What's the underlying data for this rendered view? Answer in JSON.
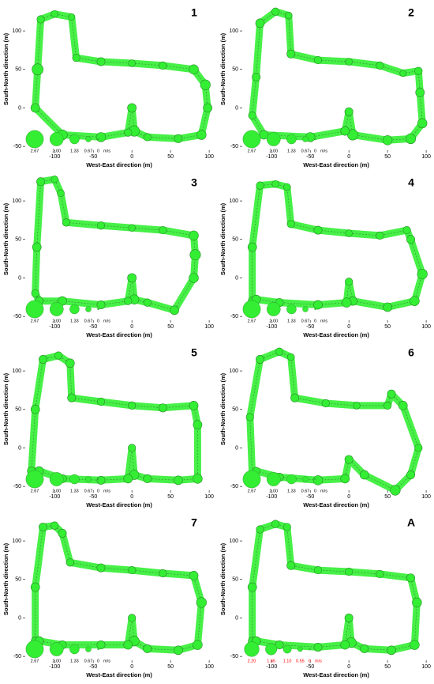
{
  "chart_data": [
    {
      "type": "bubble",
      "title": "1",
      "xlabel": "West-East direction (m)",
      "ylabel": "South-North direction (m)",
      "xlim": [
        -138,
        105
      ],
      "ylim": [
        -55,
        135
      ],
      "xticks": [
        -100,
        -50,
        0,
        50,
        100
      ],
      "yticks": [
        -50,
        0,
        50,
        100
      ],
      "color": "#33ee33",
      "x": [
        -125,
        -122,
        -118,
        -100,
        -78,
        -72,
        -40,
        0,
        40,
        80,
        95,
        98,
        90,
        60,
        20,
        3,
        0,
        -5,
        -40,
        -90
      ],
      "y": [
        0,
        50,
        115,
        122,
        118,
        65,
        60,
        58,
        55,
        50,
        30,
        0,
        -35,
        -40,
        -38,
        -30,
        0,
        -32,
        -38,
        -35
      ],
      "sizes": [
        1.2,
        1.6,
        1.0,
        0.9,
        0.8,
        1.0,
        1.1,
        0.9,
        1.0,
        1.3,
        1.4,
        1.2,
        1.3,
        1.1,
        1.0,
        1.5,
        1.2,
        1.0,
        1.3,
        1.4
      ],
      "size_legend": {
        "values": [
          2.67,
          {
            "value": 2,
            "label": "2.00"
          },
          1.33,
          0.67,
          0
        ],
        "unit": "m/s",
        "color": "#000000"
      }
    },
    {
      "type": "bubble",
      "title": "2",
      "xlabel": "West-East direction (m)",
      "ylabel": "South-North direction (m)",
      "xlim": [
        -138,
        105
      ],
      "ylim": [
        -55,
        135
      ],
      "xticks": [
        -100,
        -50,
        0,
        50,
        100
      ],
      "yticks": [
        -50,
        0,
        50,
        100
      ],
      "color": "#33ee33",
      "x": [
        -125,
        -120,
        -115,
        -95,
        -78,
        -75,
        -40,
        0,
        40,
        70,
        90,
        92,
        95,
        80,
        50,
        5,
        0,
        -5,
        -50,
        -110
      ],
      "y": [
        -10,
        40,
        110,
        125,
        120,
        70,
        62,
        60,
        55,
        45,
        48,
        20,
        -20,
        -40,
        -42,
        -35,
        -5,
        -30,
        -38,
        -35
      ],
      "sizes": [
        1.0,
        1.1,
        1.2,
        1.0,
        0.9,
        1.1,
        1.0,
        0.9,
        1.0,
        0.8,
        1.0,
        1.2,
        1.3,
        1.4,
        1.3,
        1.5,
        1.1,
        1.2,
        1.3,
        1.2
      ],
      "size_legend": {
        "values": [
          2.67,
          {
            "value": 2,
            "label": "2.00"
          },
          1.33,
          0.67,
          0
        ],
        "unit": "m/s",
        "color": "#000000"
      }
    },
    {
      "type": "bubble",
      "title": "3",
      "xlabel": "West-East direction (m)",
      "ylabel": "South-North direction (m)",
      "xlim": [
        -138,
        105
      ],
      "ylim": [
        -55,
        135
      ],
      "xticks": [
        -100,
        -50,
        0,
        50,
        100
      ],
      "yticks": [
        -50,
        0,
        50,
        100
      ],
      "color": "#33ee33",
      "x": [
        -125,
        -123,
        -118,
        -100,
        -92,
        -85,
        -40,
        0,
        40,
        80,
        82,
        80,
        55,
        20,
        3,
        0,
        -5,
        -40,
        -90,
        -120
      ],
      "y": [
        -20,
        40,
        125,
        128,
        110,
        72,
        68,
        65,
        62,
        55,
        30,
        0,
        -42,
        -32,
        -28,
        0,
        -30,
        -35,
        -30,
        -30
      ],
      "sizes": [
        1.0,
        1.2,
        1.1,
        0.9,
        0.9,
        1.0,
        1.0,
        0.9,
        1.0,
        1.3,
        1.5,
        1.3,
        1.2,
        1.0,
        1.3,
        1.2,
        1.0,
        1.1,
        1.2,
        1.1
      ],
      "size_legend": {
        "values": [
          2.67,
          {
            "value": 2,
            "label": "2.00"
          },
          1.33,
          0.67,
          0
        ],
        "unit": "m/s",
        "color": "#000000"
      }
    },
    {
      "type": "bubble",
      "title": "4",
      "xlabel": "West-East direction (m)",
      "ylabel": "South-North direction (m)",
      "xlim": [
        -138,
        105
      ],
      "ylim": [
        -55,
        135
      ],
      "xticks": [
        -100,
        -50,
        0,
        50,
        100
      ],
      "yticks": [
        -50,
        0,
        50,
        100
      ],
      "color": "#33ee33",
      "x": [
        -125,
        -125,
        -115,
        -95,
        -80,
        -75,
        -40,
        0,
        40,
        75,
        80,
        95,
        85,
        50,
        5,
        0,
        -3,
        -40,
        -90,
        -120
      ],
      "y": [
        -30,
        40,
        120,
        122,
        118,
        70,
        62,
        58,
        55,
        62,
        50,
        5,
        -30,
        -38,
        -30,
        -5,
        -32,
        -35,
        -32,
        -28
      ],
      "sizes": [
        1.1,
        1.2,
        1.0,
        0.9,
        0.9,
        1.0,
        1.1,
        0.9,
        1.0,
        1.0,
        1.1,
        1.4,
        1.3,
        1.2,
        1.2,
        1.0,
        1.3,
        1.2,
        1.1,
        1.2
      ],
      "size_legend": {
        "values": [
          2.67,
          {
            "value": 2,
            "label": "2.00"
          },
          1.33,
          0.67,
          0
        ],
        "unit": "m/s",
        "color": "#000000"
      }
    },
    {
      "type": "bubble",
      "title": "5",
      "xlabel": "West-East direction (m)",
      "ylabel": "South-North direction (m)",
      "xlim": [
        -138,
        105
      ],
      "ylim": [
        -55,
        135
      ],
      "xticks": [
        -100,
        -50,
        0,
        50,
        100
      ],
      "yticks": [
        -50,
        0,
        50,
        100
      ],
      "color": "#33ee33",
      "x": [
        -130,
        -125,
        -115,
        -95,
        -80,
        -78,
        -40,
        0,
        40,
        80,
        85,
        85,
        60,
        20,
        3,
        0,
        -5,
        -40,
        -90,
        -120
      ],
      "y": [
        -30,
        50,
        115,
        120,
        110,
        65,
        60,
        55,
        52,
        55,
        30,
        -40,
        -42,
        -40,
        -35,
        0,
        -40,
        -42,
        -40,
        -30
      ],
      "sizes": [
        1.1,
        1.2,
        1.1,
        1.0,
        1.2,
        1.1,
        1.0,
        1.0,
        1.1,
        1.2,
        1.2,
        1.3,
        1.2,
        1.1,
        1.3,
        1.0,
        1.2,
        1.1,
        1.1,
        1.2
      ],
      "size_legend": {
        "values": [
          2.67,
          {
            "value": 2,
            "label": "2.00"
          },
          1.33,
          0.67,
          0
        ],
        "unit": "m/s",
        "color": "#000000"
      }
    },
    {
      "type": "bubble",
      "title": "6",
      "xlabel": "West-East direction (m)",
      "ylabel": "South-North direction (m)",
      "xlim": [
        -138,
        105
      ],
      "ylim": [
        -55,
        135
      ],
      "xticks": [
        -100,
        -50,
        0,
        50,
        100
      ],
      "yticks": [
        -50,
        0,
        50,
        100
      ],
      "color": "#33ee33",
      "x": [
        -125,
        -128,
        -115,
        -90,
        -75,
        -70,
        -30,
        10,
        50,
        55,
        70,
        90,
        80,
        60,
        20,
        0,
        -5,
        -40,
        -90,
        -120
      ],
      "y": [
        -35,
        40,
        115,
        125,
        118,
        65,
        58,
        55,
        55,
        70,
        55,
        0,
        -35,
        -55,
        -35,
        -15,
        -40,
        -42,
        -38,
        -30
      ],
      "sizes": [
        1.0,
        1.0,
        1.1,
        1.0,
        0.9,
        1.1,
        1.0,
        0.9,
        1.0,
        1.1,
        1.2,
        1.0,
        1.1,
        1.4,
        1.2,
        1.1,
        1.2,
        1.3,
        1.1,
        1.0
      ],
      "size_legend": {
        "values": [
          2.67,
          {
            "value": 2,
            "label": "2.00"
          },
          1.33,
          0.67,
          0
        ],
        "unit": "m/s",
        "color": "#000000"
      }
    },
    {
      "type": "bubble",
      "title": "7",
      "xlabel": "West-East direction (m)",
      "ylabel": "South-North direction (m)",
      "xlim": [
        -138,
        105
      ],
      "ylim": [
        -55,
        135
      ],
      "xticks": [
        -100,
        -50,
        0,
        50,
        100
      ],
      "yticks": [
        -50,
        0,
        50,
        100
      ],
      "color": "#33ee33",
      "x": [
        -125,
        -125,
        -115,
        -100,
        -90,
        -80,
        -40,
        0,
        40,
        80,
        90,
        85,
        60,
        20,
        3,
        0,
        -5,
        -40,
        -90,
        -120
      ],
      "y": [
        -30,
        40,
        118,
        120,
        110,
        72,
        65,
        62,
        58,
        55,
        20,
        -35,
        -42,
        -40,
        -30,
        0,
        -35,
        -35,
        -35,
        -30
      ],
      "sizes": [
        1.1,
        1.2,
        1.1,
        1.0,
        1.1,
        1.0,
        1.1,
        1.0,
        1.0,
        1.2,
        1.4,
        1.3,
        1.2,
        1.1,
        1.4,
        1.0,
        1.2,
        1.1,
        1.1,
        1.2
      ],
      "size_legend": {
        "values": [
          2.67,
          {
            "value": 2,
            "label": "2.00"
          },
          1.33,
          0.67,
          0
        ],
        "unit": "m/s",
        "color": "#000000"
      }
    },
    {
      "type": "bubble",
      "title": "A",
      "xlabel": "West-East direction (m)",
      "ylabel": "South-North direction (m)",
      "xlim": [
        -138,
        105
      ],
      "ylim": [
        -55,
        135
      ],
      "xticks": [
        -100,
        -50,
        0,
        50,
        100
      ],
      "yticks": [
        -50,
        0,
        50,
        100
      ],
      "color": "#33ee33",
      "x": [
        -125,
        -125,
        -115,
        -95,
        -80,
        -75,
        -40,
        0,
        40,
        80,
        88,
        85,
        55,
        20,
        3,
        0,
        -5,
        -40,
        -90,
        -120
      ],
      "y": [
        -30,
        40,
        115,
        122,
        118,
        68,
        62,
        60,
        57,
        52,
        20,
        -35,
        -42,
        -40,
        -32,
        0,
        -35,
        -38,
        -35,
        -30
      ],
      "sizes": [
        1.1,
        1.2,
        1.0,
        1.0,
        1.0,
        1.1,
        1.0,
        1.0,
        1.0,
        1.1,
        1.3,
        1.3,
        1.2,
        1.1,
        1.4,
        1.1,
        1.2,
        1.1,
        1.1,
        1.2
      ],
      "size_legend": {
        "values": [
          {
            "value": 2.2,
            "label": "2.20"
          },
          1.65,
          {
            "value": 1.1,
            "label": "1.10"
          },
          0.55,
          0
        ],
        "unit": "m/s",
        "color": "#ff0000"
      }
    }
  ]
}
